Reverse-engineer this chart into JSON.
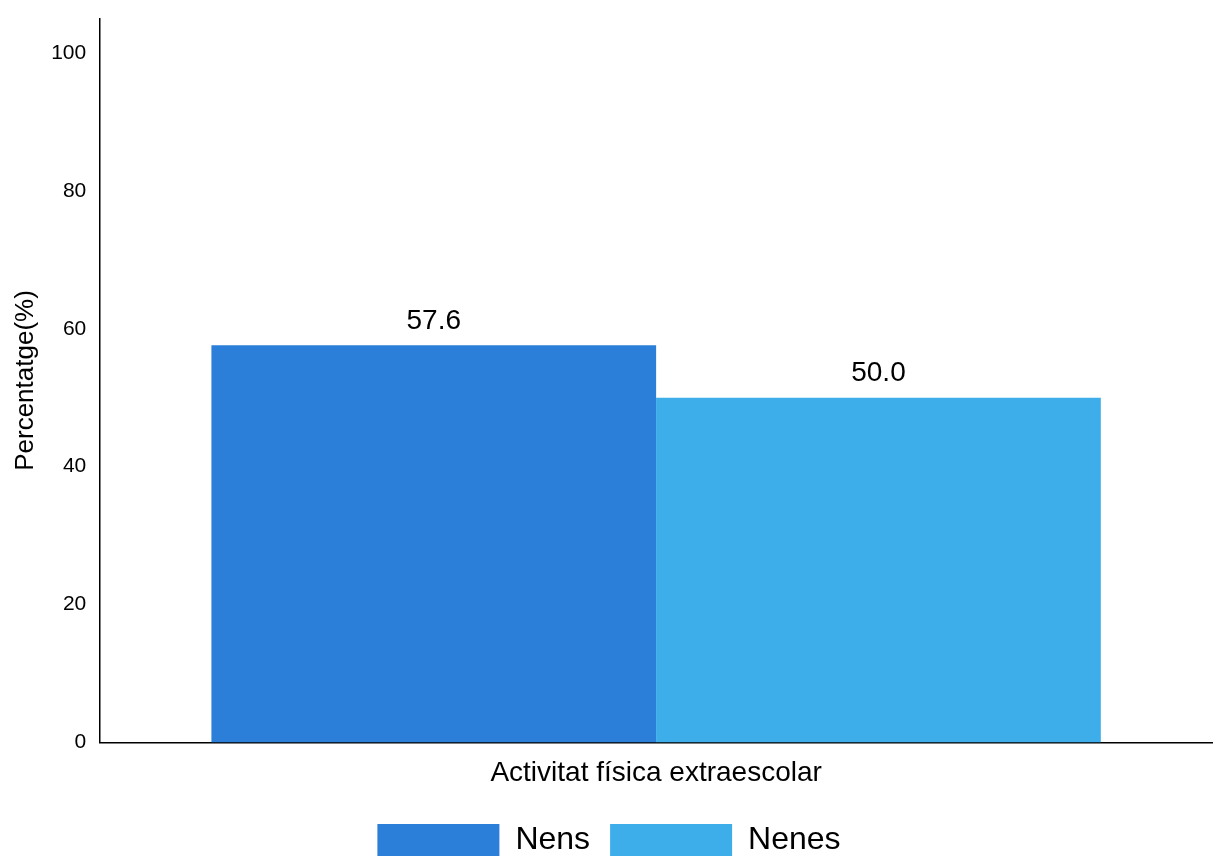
{
  "chart_data": {
    "type": "bar",
    "ylabel": "Percentatge(%)",
    "categories": [
      "Activitat física extraescolar"
    ],
    "series": [
      {
        "name": "Nens",
        "color": "#2b7fd8",
        "values": [
          57.6
        ],
        "value_labels": [
          "57.6"
        ]
      },
      {
        "name": "Nenes",
        "color": "#3daeea",
        "values": [
          50.0
        ],
        "value_labels": [
          "50.0"
        ]
      }
    ],
    "ylim": [
      0,
      105
    ],
    "yticks": [
      0,
      20,
      40,
      60,
      80,
      100
    ],
    "grid": false,
    "legend": "bottom"
  }
}
